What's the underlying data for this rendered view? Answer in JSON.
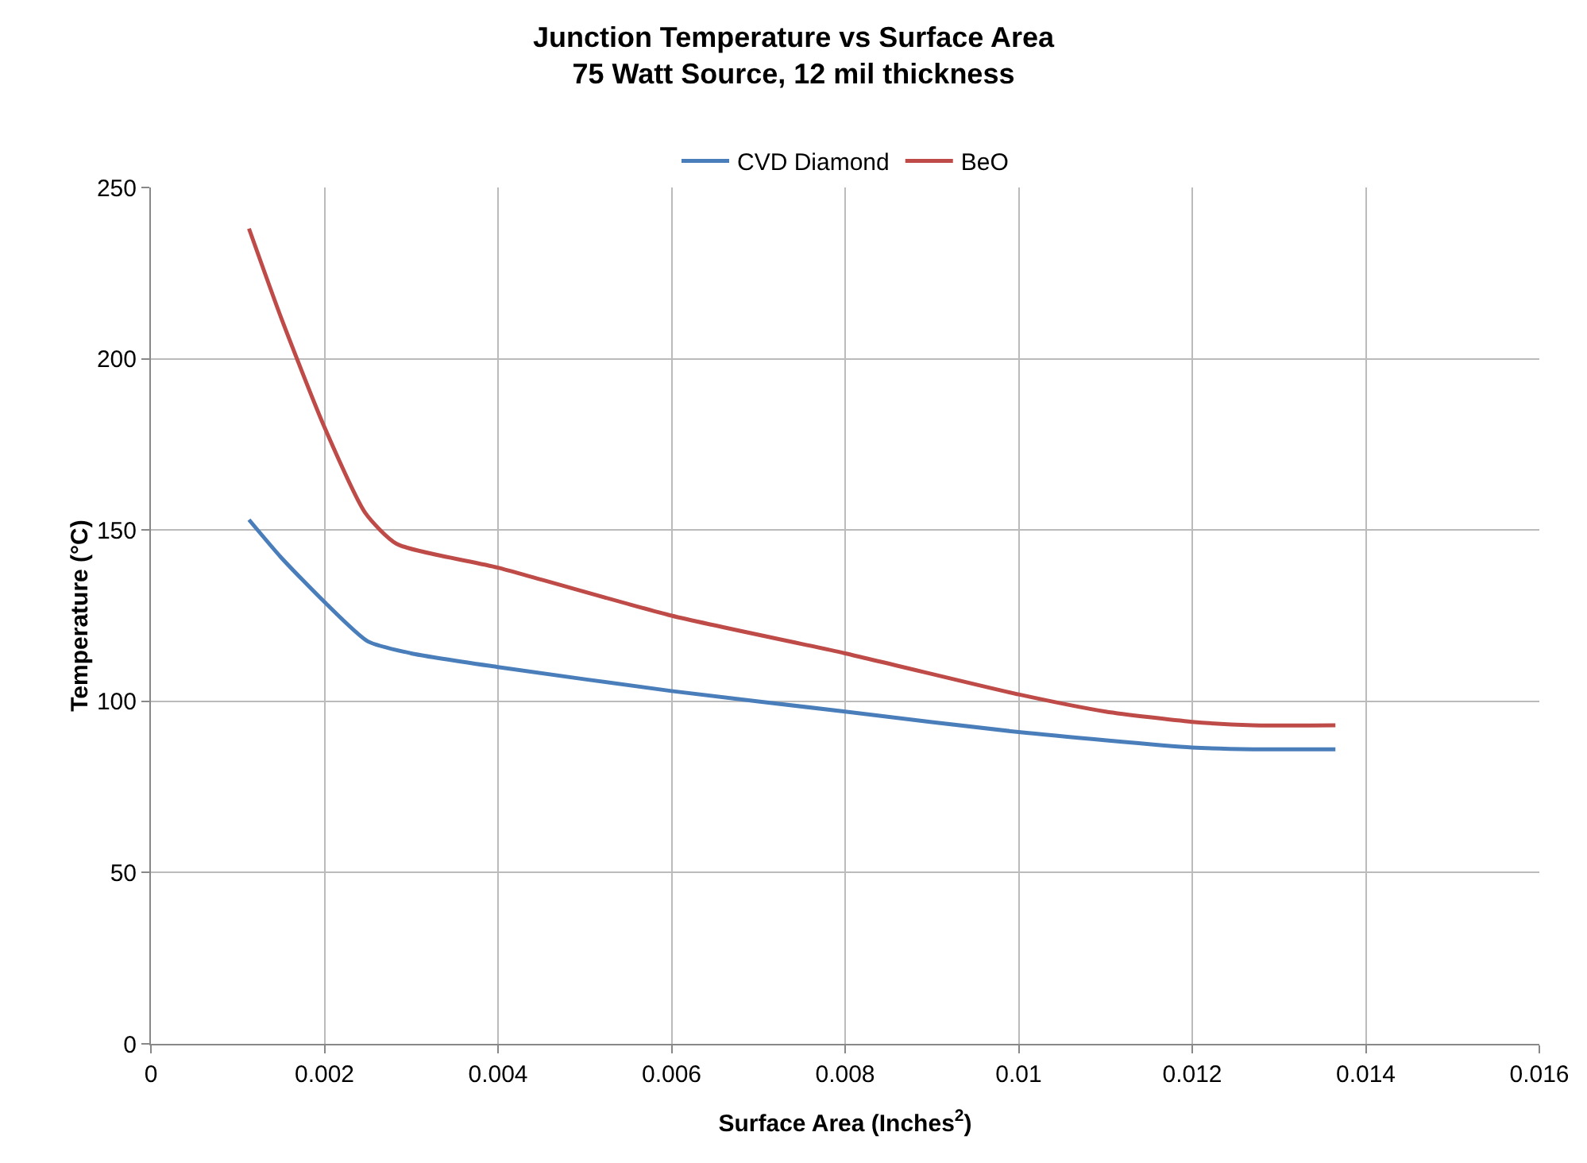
{
  "chart_data": {
    "type": "line",
    "title": "Junction Temperature vs Surface Area\n75 Watt Source, 12 mil thickness",
    "xlabel": "Surface Area (Inches$^{2}$)",
    "ylabel": "Temperature (°C)",
    "series": [
      {
        "name": "CVD Diamond",
        "color": "#4a7ebb",
        "x": [
          0.00113,
          0.0015,
          0.002,
          0.0025,
          0.003,
          0.004,
          0.006,
          0.008,
          0.01,
          0.012,
          0.0127,
          0.01365
        ],
        "values": [
          153,
          142,
          129,
          117.5,
          114,
          110,
          103,
          97,
          91,
          86.5,
          86,
          86
        ]
      },
      {
        "name": "BeO",
        "color": "#be4b48",
        "x": [
          0.00113,
          0.0015,
          0.002,
          0.00247,
          0.00283,
          0.004,
          0.006,
          0.008,
          0.01,
          0.011,
          0.012,
          0.0127,
          0.01365
        ],
        "values": [
          238,
          212,
          180,
          155,
          146,
          139,
          125,
          114,
          102,
          97,
          94,
          93,
          93
        ]
      }
    ],
    "xlim": [
      0,
      0.016
    ],
    "xticks": [
      0,
      0.002,
      0.004,
      0.006,
      0.008,
      0.01,
      0.012,
      0.014,
      0.016
    ],
    "ylim": [
      0,
      250
    ],
    "yticks": [
      0,
      50,
      100,
      150,
      200,
      250
    ],
    "grid": true,
    "legend": "top",
    "marker": "none",
    "line_style": "solid"
  }
}
